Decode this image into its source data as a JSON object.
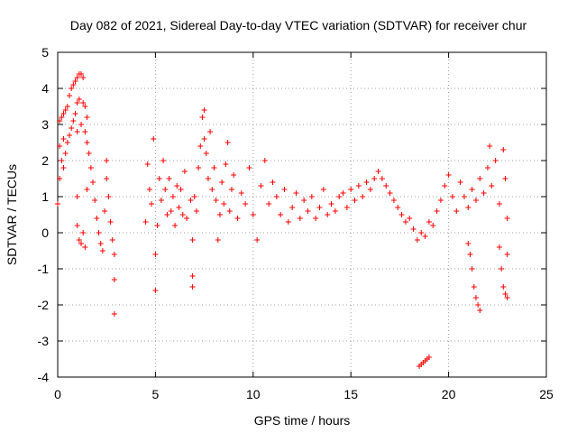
{
  "chart_data": {
    "type": "scatter",
    "title": "Day 082 of 2021, Sidereal Day-to-day VTEC variation (SDTVAR) for receiver chur",
    "xlabel": "GPS time / hours",
    "ylabel": "SDTVAR / TECUs",
    "xlim": [
      0,
      25
    ],
    "ylim": [
      -4,
      5
    ],
    "x_ticks": [
      0,
      5,
      10,
      15,
      20,
      25
    ],
    "y_ticks": [
      -4,
      -3,
      -2,
      -1,
      0,
      1,
      2,
      3,
      4,
      5
    ],
    "x_tick_labels": [
      "0",
      "5",
      "10",
      "15",
      "20",
      "25"
    ],
    "y_tick_labels": [
      "-4",
      "-3",
      "-2",
      "-1",
      "0",
      "1",
      "2",
      "3",
      "4",
      "5"
    ],
    "grid": true,
    "marker": "+",
    "series": [
      {
        "name": "SDTVAR",
        "color": "#ff0000",
        "points": [
          [
            0.0,
            0.8
          ],
          [
            0.1,
            1.5
          ],
          [
            0.1,
            2.4
          ],
          [
            0.1,
            3.1
          ],
          [
            0.2,
            2.0
          ],
          [
            0.2,
            3.2
          ],
          [
            0.3,
            1.8
          ],
          [
            0.3,
            2.6
          ],
          [
            0.3,
            3.3
          ],
          [
            0.4,
            2.2
          ],
          [
            0.4,
            3.4
          ],
          [
            0.5,
            2.5
          ],
          [
            0.5,
            3.5
          ],
          [
            0.6,
            2.7
          ],
          [
            0.6,
            3.8
          ],
          [
            0.7,
            2.9
          ],
          [
            0.7,
            4.0
          ],
          [
            0.8,
            3.1
          ],
          [
            0.8,
            4.1
          ],
          [
            0.9,
            3.3
          ],
          [
            0.9,
            4.2
          ],
          [
            1.0,
            2.8
          ],
          [
            1.0,
            3.6
          ],
          [
            1.0,
            4.3
          ],
          [
            1.1,
            3.7
          ],
          [
            1.1,
            4.4
          ],
          [
            1.2,
            3.0
          ],
          [
            1.2,
            4.4
          ],
          [
            1.3,
            3.6
          ],
          [
            1.3,
            4.3
          ],
          [
            1.4,
            2.8
          ],
          [
            1.4,
            3.5
          ],
          [
            1.5,
            2.5
          ],
          [
            1.5,
            3.2
          ],
          [
            1.0,
            1.0
          ],
          [
            1.0,
            0.2
          ],
          [
            1.1,
            -0.2
          ],
          [
            1.2,
            -0.3
          ],
          [
            1.3,
            0.0
          ],
          [
            1.4,
            -0.4
          ],
          [
            1.5,
            1.2
          ],
          [
            1.6,
            2.2
          ],
          [
            1.7,
            1.8
          ],
          [
            1.8,
            1.4
          ],
          [
            1.9,
            0.9
          ],
          [
            2.0,
            0.4
          ],
          [
            2.1,
            0.0
          ],
          [
            2.2,
            -0.3
          ],
          [
            2.3,
            -0.5
          ],
          [
            2.4,
            0.6
          ],
          [
            2.5,
            1.5
          ],
          [
            2.5,
            2.0
          ],
          [
            2.6,
            1.0
          ],
          [
            2.7,
            0.3
          ],
          [
            2.8,
            -0.2
          ],
          [
            2.9,
            -0.6
          ],
          [
            2.9,
            -1.3
          ],
          [
            2.9,
            -2.25
          ],
          [
            4.5,
            0.3
          ],
          [
            4.6,
            1.9
          ],
          [
            4.7,
            1.2
          ],
          [
            4.8,
            0.8
          ],
          [
            4.9,
            2.6
          ],
          [
            5.0,
            -0.6
          ],
          [
            5.0,
            -1.6
          ],
          [
            5.1,
            0.2
          ],
          [
            5.2,
            1.5
          ],
          [
            5.3,
            0.9
          ],
          [
            5.4,
            2.0
          ],
          [
            5.5,
            1.2
          ],
          [
            5.6,
            0.5
          ],
          [
            5.7,
            1.5
          ],
          [
            5.8,
            0.6
          ],
          [
            5.9,
            1.0
          ],
          [
            6.0,
            0.2
          ],
          [
            6.1,
            1.3
          ],
          [
            6.2,
            0.7
          ],
          [
            6.3,
            1.2
          ],
          [
            6.4,
            0.5
          ],
          [
            6.5,
            1.7
          ],
          [
            6.6,
            0.4
          ],
          [
            6.8,
            0.9
          ],
          [
            6.9,
            -0.2
          ],
          [
            6.9,
            -1.2
          ],
          [
            6.9,
            -1.5
          ],
          [
            7.0,
            1.0
          ],
          [
            7.1,
            0.6
          ],
          [
            7.2,
            1.8
          ],
          [
            7.3,
            2.4
          ],
          [
            7.4,
            3.2
          ],
          [
            7.5,
            2.6
          ],
          [
            7.5,
            3.4
          ],
          [
            7.6,
            2.2
          ],
          [
            7.7,
            1.5
          ],
          [
            7.8,
            2.8
          ],
          [
            7.9,
            1.2
          ],
          [
            8.0,
            1.8
          ],
          [
            8.1,
            0.9
          ],
          [
            8.2,
            -0.2
          ],
          [
            8.3,
            0.5
          ],
          [
            8.4,
            1.4
          ],
          [
            8.5,
            0.8
          ],
          [
            8.6,
            1.9
          ],
          [
            8.7,
            2.5
          ],
          [
            8.8,
            0.6
          ],
          [
            8.9,
            1.2
          ],
          [
            9.0,
            1.6
          ],
          [
            9.2,
            0.4
          ],
          [
            9.4,
            1.1
          ],
          [
            9.6,
            0.8
          ],
          [
            9.8,
            1.8
          ],
          [
            10.0,
            0.5
          ],
          [
            10.2,
            -0.2
          ],
          [
            10.4,
            1.3
          ],
          [
            10.6,
            2.0
          ],
          [
            10.8,
            0.8
          ],
          [
            11.0,
            1.4
          ],
          [
            11.2,
            1.0
          ],
          [
            11.4,
            0.5
          ],
          [
            11.6,
            1.2
          ],
          [
            11.8,
            0.3
          ],
          [
            12.0,
            0.7
          ],
          [
            12.2,
            1.1
          ],
          [
            12.4,
            0.4
          ],
          [
            12.6,
            0.9
          ],
          [
            12.8,
            0.6
          ],
          [
            13.0,
            1.0
          ],
          [
            13.2,
            0.4
          ],
          [
            13.4,
            0.7
          ],
          [
            13.6,
            1.2
          ],
          [
            13.8,
            0.5
          ],
          [
            14.0,
            0.8
          ],
          [
            14.2,
            0.6
          ],
          [
            14.4,
            1.0
          ],
          [
            14.6,
            1.1
          ],
          [
            14.8,
            0.7
          ],
          [
            15.0,
            1.2
          ],
          [
            15.2,
            0.9
          ],
          [
            15.4,
            1.3
          ],
          [
            15.6,
            1.0
          ],
          [
            15.8,
            1.4
          ],
          [
            16.0,
            1.2
          ],
          [
            16.2,
            1.5
          ],
          [
            16.4,
            1.7
          ],
          [
            16.6,
            1.5
          ],
          [
            16.8,
            1.3
          ],
          [
            17.0,
            1.1
          ],
          [
            17.2,
            0.9
          ],
          [
            17.4,
            0.7
          ],
          [
            17.6,
            0.5
          ],
          [
            17.8,
            0.3
          ],
          [
            18.0,
            0.4
          ],
          [
            18.2,
            0.1
          ],
          [
            18.4,
            -0.2
          ],
          [
            18.6,
            0.0
          ],
          [
            18.8,
            -0.1
          ],
          [
            19.0,
            0.3
          ],
          [
            19.2,
            0.2
          ],
          [
            19.4,
            0.6
          ],
          [
            19.6,
            0.9
          ],
          [
            19.8,
            1.3
          ],
          [
            20.0,
            1.6
          ],
          [
            20.2,
            1.0
          ],
          [
            20.4,
            0.6
          ],
          [
            20.6,
            1.4
          ],
          [
            20.8,
            1.0
          ],
          [
            21.0,
            0.7
          ],
          [
            21.2,
            1.2
          ],
          [
            21.4,
            0.9
          ],
          [
            21.6,
            1.5
          ],
          [
            21.8,
            1.1
          ],
          [
            22.0,
            1.8
          ],
          [
            22.1,
            2.4
          ],
          [
            22.2,
            1.3
          ],
          [
            22.4,
            2.0
          ],
          [
            22.6,
            0.8
          ],
          [
            22.8,
            2.3
          ],
          [
            22.9,
            1.5
          ],
          [
            23.0,
            0.4
          ],
          [
            21.0,
            -0.3
          ],
          [
            21.1,
            -0.6
          ],
          [
            21.2,
            -1.0
          ],
          [
            21.3,
            -1.5
          ],
          [
            21.4,
            -1.8
          ],
          [
            21.5,
            -2.0
          ],
          [
            21.6,
            -2.15
          ],
          [
            22.6,
            -0.4
          ],
          [
            22.7,
            -1.0
          ],
          [
            22.8,
            -1.5
          ],
          [
            22.9,
            -1.7
          ],
          [
            23.0,
            -1.8
          ],
          [
            23.0,
            -0.6
          ],
          [
            18.5,
            -3.7
          ],
          [
            18.6,
            -3.65
          ],
          [
            18.7,
            -3.6
          ],
          [
            18.8,
            -3.55
          ],
          [
            18.9,
            -3.5
          ],
          [
            19.0,
            -3.45
          ]
        ]
      }
    ]
  }
}
